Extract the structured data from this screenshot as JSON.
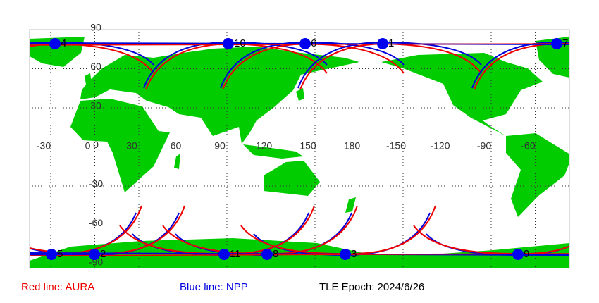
{
  "map": {
    "lon_labels": [
      "-30",
      "0",
      "30",
      "60",
      "90",
      "120",
      "150",
      "180",
      "-150",
      "-120",
      "-90",
      "-60"
    ],
    "lat_labels": [
      "90",
      "60",
      "30",
      "0",
      "-30",
      "-60",
      "-90"
    ],
    "satellites": [
      "1",
      "2",
      "3",
      "4",
      "5",
      "6",
      "7",
      "8",
      "9",
      "10",
      "11"
    ]
  },
  "legend": {
    "aura": "Red line: AURA",
    "npp": "Blue line: NPP",
    "epoch": "TLE Epoch: 2024/6/26"
  }
}
